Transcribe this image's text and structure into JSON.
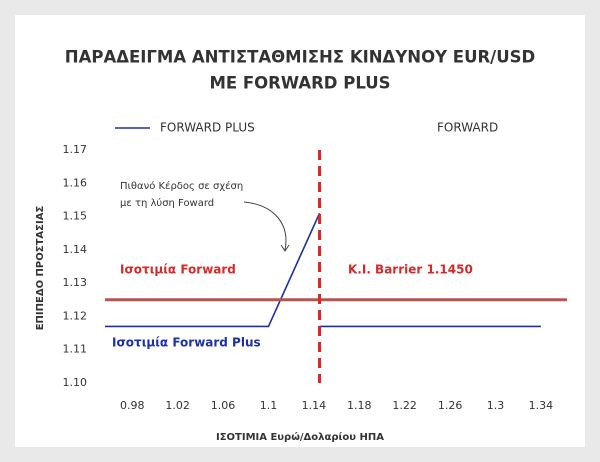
{
  "chart_data": {
    "type": "line",
    "title": [
      "ΠΑΡΑΔΕΙΓΜΑ ΑΝΤΙΣΤΑΘΜΙΣΗΣ ΚΙΝΔΥΝΟΥ EUR/USD",
      "ME FORWARD PLUS"
    ],
    "x_label": "ΙΣΟΤΙΜΙΑ  Ευρώ/Δολαρίου ΗΠΑ",
    "y_label": "ΕΠΙΠΕΔΟ ΠΡΟΣΤΑΣΙΑΣ",
    "x": [
      0.956,
      1.1,
      1.145,
      1.145,
      1.145,
      1.34
    ],
    "series": [
      {
        "name": "FORWARD PLUS",
        "color": "#1f2fa8",
        "values": [
          1.117,
          1.117,
          1.151,
          null,
          1.117,
          1.117
        ]
      },
      {
        "name": "FORWARD",
        "color": "#b85450",
        "x": [
          0.956,
          1.363
        ],
        "values": [
          1.125,
          1.125
        ]
      }
    ],
    "barrier": {
      "x": 1.145,
      "color": "#e02424"
    },
    "annotations": {
      "gain": [
        "Πιθανό Κέρδος σε σχέση",
        "με τη λύση Foward"
      ],
      "forward": "Ισοτιμία Forward",
      "barrier": "K.I. Barrier 1.1450",
      "forward_plus": "Ισοτιμία Forward Plus"
    },
    "xlim": [
      0.956,
      1.363
    ],
    "xticks": [
      0.98,
      1.02,
      1.06,
      1.1,
      1.14,
      1.18,
      1.22,
      1.26,
      1.3,
      1.34
    ],
    "ylim": [
      1.1,
      1.17
    ],
    "yticks": [
      {
        "value": 1.1,
        "label": "1.10"
      },
      1.11,
      1.12,
      1.13,
      1.14,
      1.15,
      1.16,
      1.17
    ]
  }
}
